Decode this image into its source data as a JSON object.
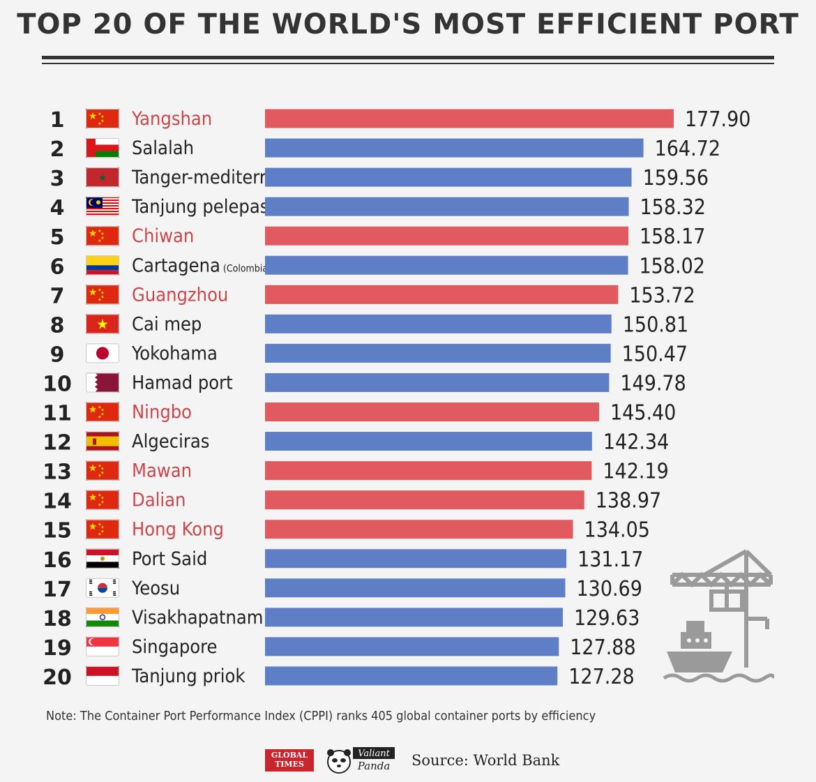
{
  "title": "TOP 20 OF THE WORLD'S MOST EFFICIENT PORT",
  "note": "Note: The Container Port Performance Index (CPPI) ranks 405 global container ports by efficiency",
  "footer": {
    "logo_global_times": "GLOBAL TIMES",
    "logo_panda_line1": "Valiant",
    "logo_panda_line2": "Panda",
    "source": "Source: World Bank"
  },
  "colors": {
    "china": "#e05a5f",
    "other": "#5e7fc6",
    "china_text": "#c9474b",
    "other_text": "#222222"
  },
  "chart_data": {
    "type": "bar",
    "orientation": "horizontal",
    "title": "TOP 20 OF THE WORLD'S MOST EFFICIENT PORT",
    "xlabel": "",
    "ylabel": "",
    "xlim": [
      0,
      177.9
    ],
    "categories": [
      "Yangshan",
      "Salalah",
      "Tanger-mediterranean",
      "Tanjung pelepas",
      "Chiwan",
      "Cartagena",
      "Guangzhou",
      "Cai mep",
      "Yokohama",
      "Hamad port",
      "Ningbo",
      "Algeciras",
      "Mawan",
      "Dalian",
      "Hong Kong",
      "Port Said",
      "Yeosu",
      "Visakhapatnam",
      "Singapore",
      "Tanjung priok"
    ],
    "values": [
      177.9,
      164.72,
      159.56,
      158.32,
      158.17,
      158.02,
      153.72,
      150.81,
      150.47,
      149.78,
      145.4,
      142.34,
      142.19,
      138.97,
      134.05,
      131.17,
      130.69,
      129.63,
      127.88,
      127.28
    ],
    "value_labels": [
      "177.90",
      "164.72",
      "159.56",
      "158.32",
      "158.17",
      "158.02",
      "153.72",
      "150.81",
      "150.47",
      "149.78",
      "145.40",
      "142.34",
      "142.19",
      "138.97",
      "134.05",
      "131.17",
      "130.69",
      "129.63",
      "127.88",
      "127.28"
    ],
    "ranks": [
      "1",
      "2",
      "3",
      "4",
      "5",
      "6",
      "7",
      "8",
      "9",
      "10",
      "11",
      "12",
      "13",
      "14",
      "15",
      "16",
      "17",
      "18",
      "19",
      "20"
    ],
    "countries": [
      "China",
      "Oman",
      "Morocco",
      "Malaysia",
      "China",
      "Colombia",
      "China",
      "Vietnam",
      "Japan",
      "Qatar",
      "China",
      "Spain",
      "China",
      "China",
      "China",
      "Egypt",
      "South Korea",
      "India",
      "Singapore",
      "Indonesia"
    ],
    "name_suffixes": [
      "",
      "",
      "",
      "",
      "",
      "(Colombia)",
      "",
      "",
      "",
      "",
      "",
      "",
      "",
      "",
      "",
      "",
      "",
      "",
      "",
      ""
    ],
    "china_highlight": [
      true,
      false,
      false,
      false,
      true,
      false,
      true,
      false,
      false,
      false,
      true,
      false,
      true,
      true,
      true,
      false,
      false,
      false,
      false,
      false
    ]
  }
}
